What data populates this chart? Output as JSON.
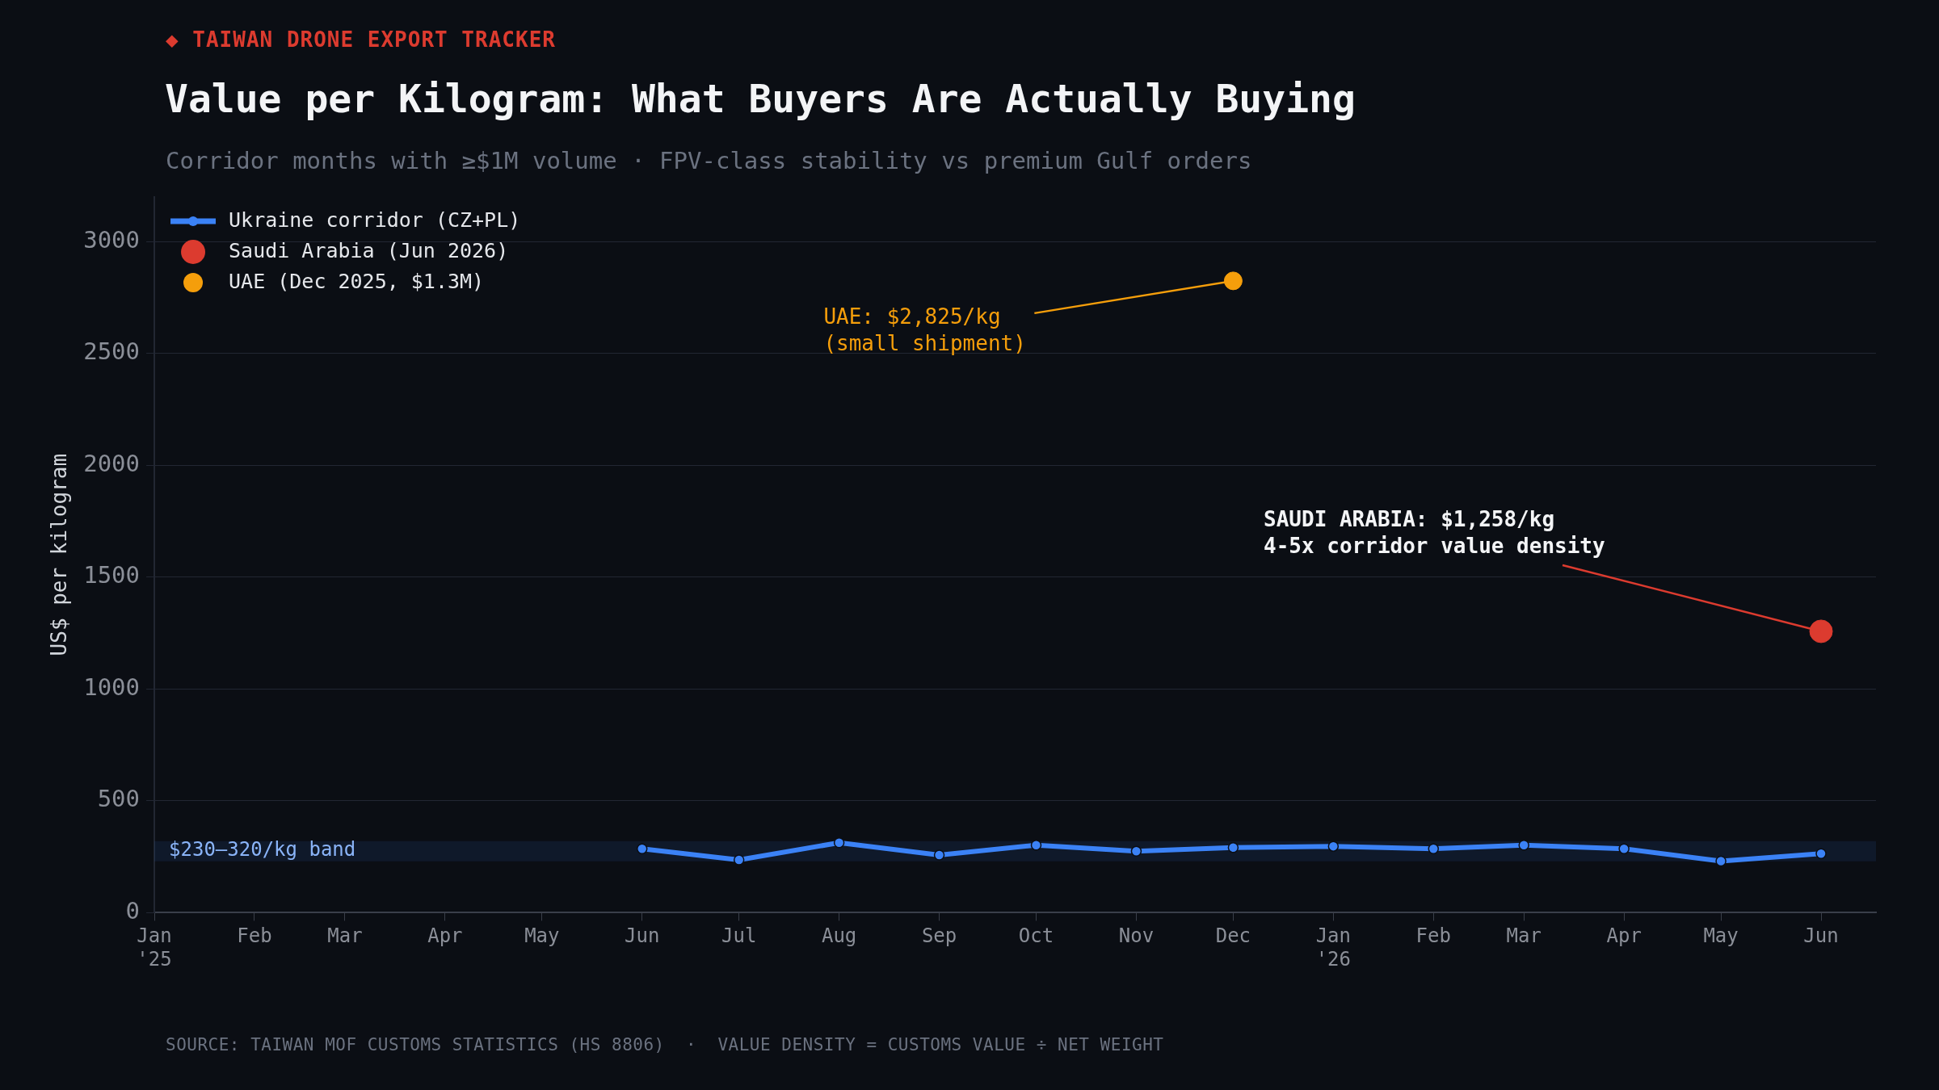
{
  "chart_data": {
    "type": "line",
    "title": "Value per Kilogram: What Buyers Are Actually Buying",
    "subtitle": "Corridor months with ≥$1M volume · FPV-class stability vs premium Gulf orders",
    "ylabel": "US$ per kilogram",
    "xlim": [
      "2025-01",
      "2026-06-18"
    ],
    "xticks": [
      {
        "value": "2025-01",
        "label": "Jan\n'25"
      },
      {
        "value": "2025-02",
        "label": "Feb"
      },
      {
        "value": "2025-03",
        "label": "Mar"
      },
      {
        "value": "2025-04",
        "label": "Apr"
      },
      {
        "value": "2025-05",
        "label": "May"
      },
      {
        "value": "2025-06",
        "label": "Jun"
      },
      {
        "value": "2025-07",
        "label": "Jul"
      },
      {
        "value": "2025-08",
        "label": "Aug"
      },
      {
        "value": "2025-09",
        "label": "Sep"
      },
      {
        "value": "2025-10",
        "label": "Oct"
      },
      {
        "value": "2025-11",
        "label": "Nov"
      },
      {
        "value": "2025-12",
        "label": "Dec"
      },
      {
        "value": "2026-01",
        "label": "Jan\n'26"
      },
      {
        "value": "2026-02",
        "label": "Feb"
      },
      {
        "value": "2026-03",
        "label": "Mar"
      },
      {
        "value": "2026-04",
        "label": "Apr"
      },
      {
        "value": "2026-05",
        "label": "May"
      },
      {
        "value": "2026-06",
        "label": "Jun"
      }
    ],
    "ylim": [
      0,
      3200
    ],
    "yticks": [
      0,
      500,
      1000,
      1500,
      2000,
      2500,
      3000
    ],
    "series": [
      {
        "name": "Ukraine corridor (CZ+PL)",
        "color": "#3b82f6",
        "x": [
          "2025-06",
          "2025-07",
          "2025-08",
          "2025-09",
          "2025-10",
          "2025-11",
          "2025-12",
          "2026-01",
          "2026-02",
          "2026-03",
          "2026-04",
          "2026-05",
          "2026-06"
        ],
        "values": [
          286,
          236,
          313,
          258,
          302,
          275,
          291,
          297,
          286,
          302,
          286,
          231,
          264
        ]
      },
      {
        "name": "Saudi Arabia (Jun 2026)",
        "type": "scatter",
        "color": "#dc3b2f",
        "x": [
          "2026-06"
        ],
        "values": [
          1258
        ]
      },
      {
        "name": "UAE (Dec 2025, $1.3M)",
        "type": "scatter",
        "color": "#f59e0b",
        "x": [
          "2025-12"
        ],
        "values": [
          2825
        ]
      }
    ],
    "bands": [
      {
        "axis": "y",
        "from": 230,
        "to": 320,
        "label": "$230–320/kg band",
        "color": "#3b82f6"
      }
    ],
    "annotations": [
      "◆ TAIWAN DRONE EXPORT TRACKER",
      {
        "text": "UAE: $2,825/kg\n(small shipment)",
        "x": "2025-12",
        "y": 2825
      },
      {
        "text": "SAUDI ARABIA: $1,258/kg\n4-5x corridor value density",
        "x": "2026-06",
        "y": 1258
      },
      "SOURCE: TAIWAN MOF CUSTOMS STATISTICS (HS 8806)  ·  VALUE DENSITY = CUSTOMS VALUE ÷ NET WEIGHT"
    ],
    "grid": "y",
    "legend": "top left",
    "marker": "circle",
    "line_style": "solid"
  }
}
